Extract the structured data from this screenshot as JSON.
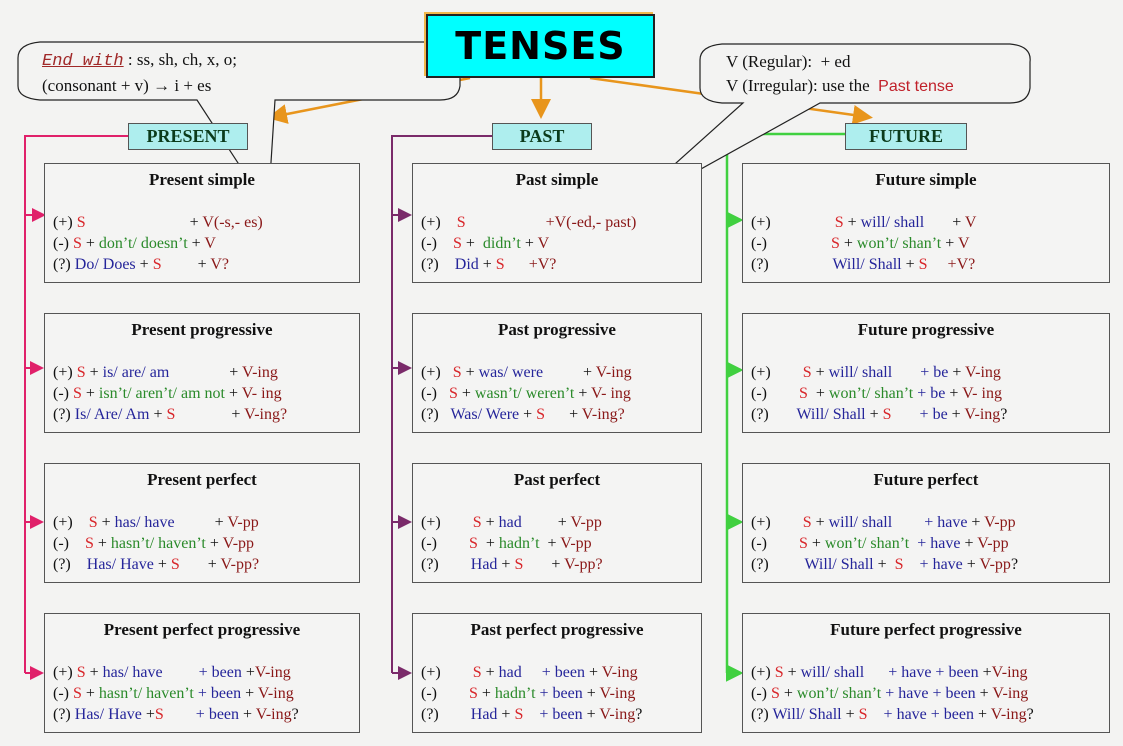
{
  "title": "TENSES",
  "colors": {
    "present_branch": "#e0206a",
    "past_branch": "#7a2a6a",
    "future_branch": "#40d040",
    "arrows": "#e8951c",
    "title_bg": "#00ffff",
    "header_bg": "#aeeeee",
    "k": "#111111",
    "r": "#d8262a",
    "g": "#2a8a2a",
    "b": "#25259a",
    "d": "#8a1818"
  },
  "headers": {
    "present": "PRESENT",
    "past": "PAST",
    "future": "FUTURE"
  },
  "callout_left": {
    "end_with": "End with",
    "line1": " : ss, sh, ch, x, o;",
    "line2": "(consonant + v) → i + es"
  },
  "callout_right": {
    "line1": "V (Regular):  + ed",
    "line2_a": "V (Irregular): use the  ",
    "line2_b": "Past tense"
  },
  "boxes": [
    {
      "col": 0,
      "title": "Present simple",
      "rows": [
        [
          [
            "k",
            "(+) "
          ],
          [
            "r",
            "S"
          ],
          [
            "k",
            "                          + "
          ],
          [
            "d",
            "V(-s,- es)"
          ]
        ],
        [
          [
            "k",
            "(-) "
          ],
          [
            "r",
            "S"
          ],
          [
            "k",
            " + "
          ],
          [
            "g",
            "don’t/ doesn’t"
          ],
          [
            "k",
            " + "
          ],
          [
            "d",
            "V"
          ]
        ],
        [
          [
            "k",
            "(?) "
          ],
          [
            "b",
            "Do/ Does"
          ],
          [
            "k",
            " + "
          ],
          [
            "r",
            "S"
          ],
          [
            "k",
            "         + "
          ],
          [
            "d",
            "V?"
          ]
        ]
      ]
    },
    {
      "col": 0,
      "title": "Present progressive",
      "rows": [
        [
          [
            "k",
            "(+) "
          ],
          [
            "r",
            "S"
          ],
          [
            "k",
            " + "
          ],
          [
            "b",
            "is/ are/ am"
          ],
          [
            "k",
            "               + "
          ],
          [
            "d",
            "V-ing"
          ]
        ],
        [
          [
            "k",
            "(-) "
          ],
          [
            "r",
            "S"
          ],
          [
            "k",
            " + "
          ],
          [
            "g",
            "isn’t/ aren’t/ am not"
          ],
          [
            "k",
            " + "
          ],
          [
            "d",
            "V- ing"
          ]
        ],
        [
          [
            "k",
            "(?) "
          ],
          [
            "b",
            "Is/ Are/ Am"
          ],
          [
            "k",
            " + "
          ],
          [
            "r",
            "S"
          ],
          [
            "k",
            "              + "
          ],
          [
            "d",
            "V-ing?"
          ]
        ]
      ]
    },
    {
      "col": 0,
      "title": "Present perfect",
      "rows": [
        [
          [
            "k",
            "(+)    "
          ],
          [
            "r",
            "S"
          ],
          [
            "k",
            " + "
          ],
          [
            "b",
            "has/ have"
          ],
          [
            "k",
            "          + "
          ],
          [
            "d",
            "V-pp"
          ]
        ],
        [
          [
            "k",
            "(-)    "
          ],
          [
            "r",
            "S"
          ],
          [
            "k",
            " + "
          ],
          [
            "g",
            "hasn’t/ haven’t"
          ],
          [
            "k",
            " + "
          ],
          [
            "d",
            "V-pp"
          ]
        ],
        [
          [
            "k",
            "(?)    "
          ],
          [
            "b",
            "Has/ Have"
          ],
          [
            "k",
            " + "
          ],
          [
            "r",
            "S"
          ],
          [
            "k",
            "       + "
          ],
          [
            "d",
            "V-pp?"
          ]
        ]
      ]
    },
    {
      "col": 0,
      "title": "Present perfect progressive",
      "rows": [
        [
          [
            "k",
            "(+) "
          ],
          [
            "r",
            "S"
          ],
          [
            "k",
            " + "
          ],
          [
            "b",
            "has/ have"
          ],
          [
            "k",
            "         "
          ],
          [
            "b",
            "+ been"
          ],
          [
            "k",
            " +"
          ],
          [
            "d",
            "V-ing"
          ]
        ],
        [
          [
            "k",
            "(-) "
          ],
          [
            "r",
            "S"
          ],
          [
            "k",
            " + "
          ],
          [
            "g",
            "hasn’t/ haven’t"
          ],
          [
            "b",
            " + been"
          ],
          [
            "k",
            " + "
          ],
          [
            "d",
            "V-ing"
          ]
        ],
        [
          [
            "k",
            "(?) "
          ],
          [
            "b",
            "Has/ Have"
          ],
          [
            "k",
            " +"
          ],
          [
            "r",
            "S"
          ],
          [
            "k",
            "        "
          ],
          [
            "b",
            "+ been"
          ],
          [
            "k",
            " + "
          ],
          [
            "d",
            "V-ing"
          ],
          [
            "k",
            "?"
          ]
        ]
      ]
    },
    {
      "col": 1,
      "title": "Past simple",
      "rows": [
        [
          [
            "k",
            "(+)    "
          ],
          [
            "r",
            "S"
          ],
          [
            "k",
            "                    "
          ],
          [
            "d",
            "+V(-ed,- past)"
          ]
        ],
        [
          [
            "k",
            "(-)    "
          ],
          [
            "r",
            "S"
          ],
          [
            "k",
            " +  "
          ],
          [
            "g",
            "didn’t"
          ],
          [
            "k",
            " + "
          ],
          [
            "d",
            "V"
          ]
        ],
        [
          [
            "k",
            "(?)    "
          ],
          [
            "b",
            "Did"
          ],
          [
            "k",
            " + "
          ],
          [
            "r",
            "S"
          ],
          [
            "k",
            "      "
          ],
          [
            "d",
            "+V?"
          ]
        ]
      ]
    },
    {
      "col": 1,
      "title": "Past progressive",
      "rows": [
        [
          [
            "k",
            "(+)   "
          ],
          [
            "r",
            "S"
          ],
          [
            "k",
            " + "
          ],
          [
            "b",
            "was/ were"
          ],
          [
            "k",
            "          + "
          ],
          [
            "d",
            "V-ing"
          ]
        ],
        [
          [
            "k",
            "(-)   "
          ],
          [
            "r",
            "S"
          ],
          [
            "k",
            " + "
          ],
          [
            "g",
            "wasn’t/ weren’t"
          ],
          [
            "k",
            " + "
          ],
          [
            "d",
            "V- ing"
          ]
        ],
        [
          [
            "k",
            "(?)   "
          ],
          [
            "b",
            "Was/ Were"
          ],
          [
            "k",
            " + "
          ],
          [
            "r",
            "S"
          ],
          [
            "k",
            "      + "
          ],
          [
            "d",
            "V-ing?"
          ]
        ]
      ]
    },
    {
      "col": 1,
      "title": "Past perfect",
      "rows": [
        [
          [
            "k",
            "(+)        "
          ],
          [
            "r",
            "S"
          ],
          [
            "k",
            " + "
          ],
          [
            "b",
            "had"
          ],
          [
            "k",
            "         + "
          ],
          [
            "d",
            "V-pp"
          ]
        ],
        [
          [
            "k",
            "(-)        "
          ],
          [
            "r",
            "S"
          ],
          [
            "k",
            "  + "
          ],
          [
            "g",
            "hadn’t"
          ],
          [
            "k",
            "  + "
          ],
          [
            "d",
            "V-pp"
          ]
        ],
        [
          [
            "k",
            "(?)        "
          ],
          [
            "b",
            "Had"
          ],
          [
            "k",
            " + "
          ],
          [
            "r",
            "S"
          ],
          [
            "k",
            "       + "
          ],
          [
            "d",
            "V-pp?"
          ]
        ]
      ]
    },
    {
      "col": 1,
      "title": "Past perfect progressive",
      "rows": [
        [
          [
            "k",
            "(+)        "
          ],
          [
            "r",
            "S"
          ],
          [
            "k",
            " + "
          ],
          [
            "b",
            "had"
          ],
          [
            "k",
            "     "
          ],
          [
            "b",
            "+ been"
          ],
          [
            "k",
            " + "
          ],
          [
            "d",
            "V-ing"
          ]
        ],
        [
          [
            "k",
            "(-)        "
          ],
          [
            "r",
            "S"
          ],
          [
            "k",
            " + "
          ],
          [
            "g",
            "hadn’t"
          ],
          [
            "b",
            " + been"
          ],
          [
            "k",
            " + "
          ],
          [
            "d",
            "V-ing"
          ]
        ],
        [
          [
            "k",
            "(?)        "
          ],
          [
            "b",
            "Had"
          ],
          [
            "k",
            " + "
          ],
          [
            "r",
            "S"
          ],
          [
            "k",
            "    "
          ],
          [
            "b",
            "+ been"
          ],
          [
            "k",
            " + "
          ],
          [
            "d",
            "V-ing"
          ],
          [
            "k",
            "?"
          ]
        ]
      ]
    },
    {
      "col": 2,
      "title": "Future simple",
      "rows": [
        [
          [
            "k",
            "(+)                "
          ],
          [
            "r",
            "S"
          ],
          [
            "k",
            " + "
          ],
          [
            "b",
            "will/ shall"
          ],
          [
            "k",
            "       + "
          ],
          [
            "d",
            "V"
          ]
        ],
        [
          [
            "k",
            "(-)                "
          ],
          [
            "r",
            "S"
          ],
          [
            "k",
            " + "
          ],
          [
            "g",
            "won’t/ shan’t"
          ],
          [
            "k",
            " + "
          ],
          [
            "d",
            "V"
          ]
        ],
        [
          [
            "k",
            "(?)                "
          ],
          [
            "b",
            "Will/ Shall"
          ],
          [
            "k",
            " + "
          ],
          [
            "r",
            "S"
          ],
          [
            "k",
            "     "
          ],
          [
            "d",
            "+V?"
          ]
        ]
      ]
    },
    {
      "col": 2,
      "title": "Future progressive",
      "rows": [
        [
          [
            "k",
            "(+)        "
          ],
          [
            "r",
            "S"
          ],
          [
            "k",
            " + "
          ],
          [
            "b",
            "will/ shall"
          ],
          [
            "k",
            "       "
          ],
          [
            "b",
            "+ be"
          ],
          [
            "k",
            " + "
          ],
          [
            "d",
            "V-ing"
          ]
        ],
        [
          [
            "k",
            "(-)        "
          ],
          [
            "r",
            "S"
          ],
          [
            "k",
            "  + "
          ],
          [
            "g",
            "won’t/ shan’t"
          ],
          [
            "b",
            " + be"
          ],
          [
            "k",
            " + "
          ],
          [
            "d",
            "V- ing"
          ]
        ],
        [
          [
            "k",
            "(?)       "
          ],
          [
            "b",
            "Will/ Shall"
          ],
          [
            "k",
            " + "
          ],
          [
            "r",
            "S"
          ],
          [
            "k",
            "       "
          ],
          [
            "b",
            "+ be"
          ],
          [
            "k",
            " + "
          ],
          [
            "d",
            "V-ing"
          ],
          [
            "k",
            "?"
          ]
        ]
      ]
    },
    {
      "col": 2,
      "title": "Future perfect",
      "rows": [
        [
          [
            "k",
            "(+)        "
          ],
          [
            "r",
            "S"
          ],
          [
            "k",
            " + "
          ],
          [
            "b",
            "will/ shall"
          ],
          [
            "k",
            "        "
          ],
          [
            "b",
            "+ have"
          ],
          [
            "k",
            " + "
          ],
          [
            "d",
            "V-pp"
          ]
        ],
        [
          [
            "k",
            "(-)        "
          ],
          [
            "r",
            "S"
          ],
          [
            "k",
            " + "
          ],
          [
            "g",
            "won’t/ shan’t"
          ],
          [
            "b",
            "  + have"
          ],
          [
            "k",
            " + "
          ],
          [
            "d",
            "V-pp"
          ]
        ],
        [
          [
            "k",
            "(?)         "
          ],
          [
            "b",
            "Will/ Shall"
          ],
          [
            "k",
            " +  "
          ],
          [
            "r",
            "S"
          ],
          [
            "b",
            "    + have"
          ],
          [
            "k",
            " + "
          ],
          [
            "d",
            "V-pp"
          ],
          [
            "k",
            "?"
          ]
        ]
      ]
    },
    {
      "col": 2,
      "title": "Future perfect progressive",
      "rows": [
        [
          [
            "k",
            "(+) "
          ],
          [
            "r",
            "S"
          ],
          [
            "k",
            " + "
          ],
          [
            "b",
            "will/ shall"
          ],
          [
            "k",
            "      "
          ],
          [
            "b",
            "+ have + been"
          ],
          [
            "k",
            " +"
          ],
          [
            "d",
            "V-ing"
          ]
        ],
        [
          [
            "k",
            "(-) "
          ],
          [
            "r",
            "S"
          ],
          [
            "k",
            " + "
          ],
          [
            "g",
            "won’t/ shan’t"
          ],
          [
            "b",
            " + have + been"
          ],
          [
            "k",
            " + "
          ],
          [
            "d",
            "V-ing"
          ]
        ],
        [
          [
            "k",
            "(?) "
          ],
          [
            "b",
            "Will/ Shall"
          ],
          [
            "k",
            " + "
          ],
          [
            "r",
            "S"
          ],
          [
            "b",
            "    + have + been"
          ],
          [
            "k",
            " + "
          ],
          [
            "d",
            "V-ing"
          ],
          [
            "k",
            "?"
          ]
        ]
      ]
    }
  ]
}
